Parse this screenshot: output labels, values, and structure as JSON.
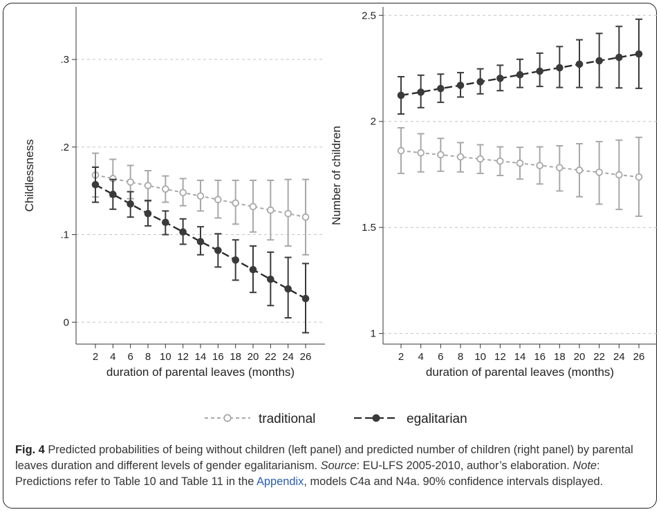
{
  "chart_data": [
    {
      "panel": "left",
      "type": "line",
      "ylabel": "Childlessness",
      "xlabel": "duration of parental leaves (months)",
      "x": [
        2,
        4,
        6,
        8,
        10,
        12,
        14,
        16,
        18,
        20,
        22,
        24,
        26
      ],
      "ylim": [
        -0.025,
        0.36
      ],
      "yticks": [
        0,
        0.1,
        0.2,
        0.3
      ],
      "ytick_labels": [
        "0",
        ".1",
        ".2",
        ".3"
      ],
      "grid": "horizontal dashed",
      "series": [
        {
          "name": "traditional",
          "color": "#a8a8a8",
          "values": [
            0.168,
            0.164,
            0.16,
            0.156,
            0.152,
            0.148,
            0.144,
            0.14,
            0.136,
            0.132,
            0.128,
            0.124,
            0.12
          ],
          "ci_low": [
            0.143,
            0.143,
            0.141,
            0.138,
            0.137,
            0.133,
            0.127,
            0.119,
            0.112,
            0.103,
            0.094,
            0.087,
            0.077
          ],
          "ci_high": [
            0.193,
            0.186,
            0.179,
            0.173,
            0.167,
            0.164,
            0.162,
            0.162,
            0.162,
            0.162,
            0.162,
            0.163,
            0.163
          ]
        },
        {
          "name": "egalitarian",
          "color": "#3a3a3a",
          "values": [
            0.157,
            0.146,
            0.135,
            0.124,
            0.114,
            0.103,
            0.092,
            0.082,
            0.071,
            0.06,
            0.049,
            0.038,
            0.027
          ],
          "ci_low": [
            0.137,
            0.129,
            0.12,
            0.11,
            0.1,
            0.089,
            0.077,
            0.063,
            0.048,
            0.034,
            0.019,
            0.005,
            -0.012
          ],
          "ci_high": [
            0.177,
            0.163,
            0.149,
            0.139,
            0.127,
            0.118,
            0.109,
            0.101,
            0.094,
            0.087,
            0.08,
            0.074,
            0.067
          ]
        }
      ]
    },
    {
      "panel": "right",
      "type": "line",
      "ylabel": "Number of children",
      "xlabel": "duration of parental leaves (months)",
      "x": [
        2,
        4,
        6,
        8,
        10,
        12,
        14,
        16,
        18,
        20,
        22,
        24,
        26
      ],
      "ylim": [
        0.95,
        2.54
      ],
      "yticks": [
        1,
        1.5,
        2,
        2.5
      ],
      "ytick_labels": [
        "1",
        "1.5",
        "2",
        "2.5"
      ],
      "grid": "horizontal dashed",
      "series": [
        {
          "name": "traditional",
          "color": "#a8a8a8",
          "values": [
            1.862,
            1.852,
            1.843,
            1.833,
            1.823,
            1.813,
            1.803,
            1.792,
            1.782,
            1.77,
            1.76,
            1.748,
            1.738
          ],
          "ci_low": [
            1.755,
            1.762,
            1.765,
            1.762,
            1.755,
            1.745,
            1.728,
            1.705,
            1.672,
            1.645,
            1.61,
            1.585,
            1.553
          ],
          "ci_high": [
            1.97,
            1.942,
            1.92,
            1.9,
            1.89,
            1.88,
            1.878,
            1.88,
            1.885,
            1.895,
            1.905,
            1.912,
            1.925
          ]
        },
        {
          "name": "egalitarian",
          "color": "#3a3a3a",
          "values": [
            2.123,
            2.138,
            2.155,
            2.17,
            2.187,
            2.203,
            2.22,
            2.237,
            2.253,
            2.27,
            2.286,
            2.302,
            2.318
          ],
          "ci_low": [
            2.035,
            2.065,
            2.09,
            2.115,
            2.13,
            2.145,
            2.16,
            2.165,
            2.16,
            2.16,
            2.16,
            2.158,
            2.156
          ],
          "ci_high": [
            2.211,
            2.218,
            2.223,
            2.23,
            2.248,
            2.265,
            2.293,
            2.322,
            2.353,
            2.385,
            2.415,
            2.448,
            2.482
          ]
        }
      ]
    }
  ],
  "legend": {
    "traditional": "traditional",
    "egalitarian": "egalitarian"
  },
  "caption": {
    "label": "Fig. 4",
    "text1": " Predicted probabilities of being without children (left panel) and predicted number of children (right panel) by parental leaves duration and different levels of gender egalitarianism. ",
    "source_label": "Source",
    "text2": ": EU-LFS 2005-2010, author’s elaboration. ",
    "note_label": "Note",
    "text3": ": Predictions refer to Table 10 and Table 11 in the ",
    "link": "Appendix",
    "text4": ", models C4a and N4a. 90% confidence intervals displayed."
  }
}
